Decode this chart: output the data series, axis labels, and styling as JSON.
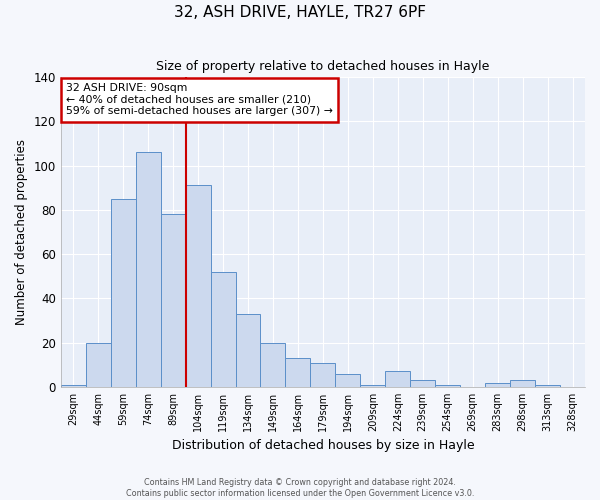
{
  "title": "32, ASH DRIVE, HAYLE, TR27 6PF",
  "subtitle": "Size of property relative to detached houses in Hayle",
  "xlabel": "Distribution of detached houses by size in Hayle",
  "ylabel": "Number of detached properties",
  "bar_labels": [
    "29sqm",
    "44sqm",
    "59sqm",
    "74sqm",
    "89sqm",
    "104sqm",
    "119sqm",
    "134sqm",
    "149sqm",
    "164sqm",
    "179sqm",
    "194sqm",
    "209sqm",
    "224sqm",
    "239sqm",
    "254sqm",
    "269sqm",
    "283sqm",
    "298sqm",
    "313sqm",
    "328sqm"
  ],
  "bar_values": [
    1,
    20,
    85,
    106,
    78,
    91,
    52,
    33,
    20,
    13,
    11,
    6,
    1,
    7,
    3,
    1,
    0,
    2,
    3,
    1,
    0
  ],
  "bar_color": "#ccd9ee",
  "bar_edge_color": "#5b8fc9",
  "ylim": [
    0,
    140
  ],
  "yticks": [
    0,
    20,
    40,
    60,
    80,
    100,
    120,
    140
  ],
  "vline_color": "#cc0000",
  "annotation_title": "32 ASH DRIVE: 90sqm",
  "annotation_line1": "← 40% of detached houses are smaller (210)",
  "annotation_line2": "59% of semi-detached houses are larger (307) →",
  "annotation_box_color": "#cc0000",
  "footer_line1": "Contains HM Land Registry data © Crown copyright and database right 2024.",
  "footer_line2": "Contains public sector information licensed under the Open Government Licence v3.0.",
  "plot_bg_color": "#e8eef8",
  "fig_bg_color": "#f5f7fc",
  "grid_color": "#ffffff"
}
